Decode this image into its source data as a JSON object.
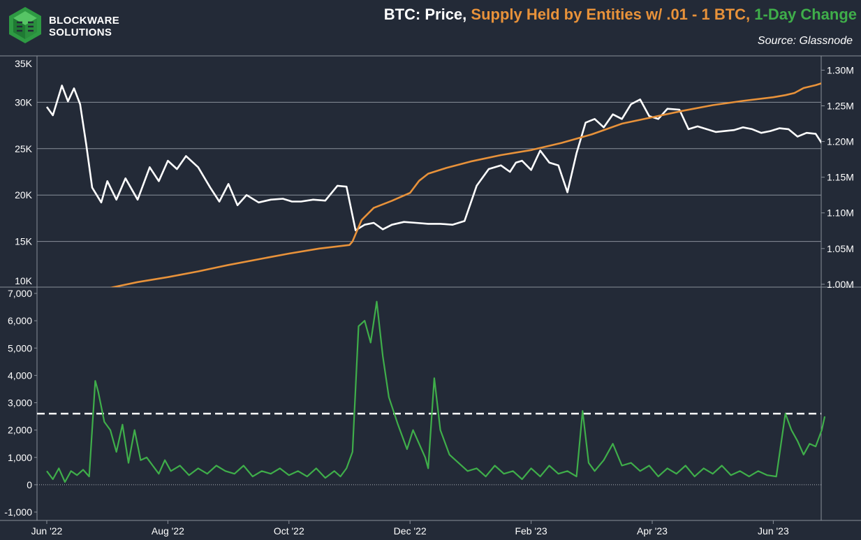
{
  "header": {
    "logo_line1": "BLOCKWARE",
    "logo_line2": "SOLUTIONS",
    "title_price": "BTC: Price,",
    "title_supply": "Supply Held by Entities w/ .01 - 1 BTC,",
    "title_change": "1-Day Change",
    "source": "Source: Glassnode"
  },
  "colors": {
    "background": "#232a37",
    "price": "#ffffff",
    "supply": "#e8923a",
    "change": "#3fae4a",
    "grid": "#8a909a"
  },
  "chart_data": [
    {
      "type": "line",
      "title": "BTC Price and Supply Held by Entities w/ .01 - 1 BTC",
      "x_ticks": [
        "Jun '22",
        "Aug '22",
        "Oct '22",
        "Dec '22",
        "Feb '23",
        "Apr '23",
        "Jun '23"
      ],
      "y_left": {
        "ticks": [
          "10K",
          "15K",
          "20K",
          "25K",
          "30K",
          "35K"
        ],
        "range": [
          10000,
          35000
        ]
      },
      "y_right": {
        "ticks": [
          "1.00M",
          "1.05M",
          "1.10M",
          "1.15M",
          "1.20M",
          "1.25M",
          "1.30M"
        ],
        "range": [
          995000,
          1320000
        ]
      },
      "series": [
        {
          "name": "BTC Price",
          "axis": "left",
          "x_months": [
            0,
            0.1,
            0.25,
            0.35,
            0.45,
            0.55,
            0.65,
            0.75,
            0.9,
            1.0,
            1.15,
            1.3,
            1.5,
            1.7,
            1.85,
            2.0,
            2.15,
            2.3,
            2.5,
            2.7,
            2.85,
            3.0,
            3.15,
            3.3,
            3.5,
            3.7,
            3.9,
            4.05,
            4.2,
            4.4,
            4.6,
            4.8,
            4.95,
            5.1,
            5.25,
            5.4,
            5.55,
            5.7,
            5.9,
            6.1,
            6.3,
            6.5,
            6.7,
            6.9,
            7.1,
            7.3,
            7.5,
            7.65,
            7.75,
            7.85,
            8.0,
            8.15,
            8.3,
            8.45,
            8.6,
            8.75,
            8.9,
            9.05,
            9.2,
            9.35,
            9.5,
            9.65,
            9.8,
            9.95,
            10.1,
            10.25,
            10.45,
            10.6,
            10.75,
            10.9,
            11.05,
            11.2,
            11.35,
            11.5,
            11.65,
            11.8,
            11.95,
            12.1,
            12.25,
            12.4,
            12.55,
            12.7,
            12.85
          ],
          "values": [
            29500,
            28600,
            31800,
            30100,
            31500,
            29800,
            25500,
            20800,
            19200,
            21500,
            19500,
            21800,
            19500,
            23000,
            21500,
            23700,
            22800,
            24200,
            23000,
            20800,
            19300,
            21200,
            18900,
            20000,
            19200,
            19500,
            19600,
            19300,
            19300,
            19500,
            19400,
            21000,
            20900,
            16200,
            16800,
            17000,
            16300,
            16800,
            17100,
            17000,
            16900,
            16900,
            16800,
            17200,
            21000,
            22800,
            23200,
            22500,
            23500,
            23700,
            22700,
            24800,
            23500,
            23200,
            20300,
            24500,
            27800,
            28200,
            27300,
            28700,
            28200,
            29800,
            30300,
            28500,
            28200,
            29300,
            29200,
            27100,
            27400,
            27100,
            26800,
            26900,
            27000,
            27300,
            27100,
            26700,
            26900,
            27200,
            27100,
            26300,
            26700,
            26600,
            25100
          ]
        },
        {
          "name": "Supply Held by Entities w/ .01 - 1 BTC",
          "axis": "right",
          "x_months": [
            1.05,
            1.5,
            2.0,
            2.5,
            3.0,
            3.5,
            4.0,
            4.5,
            5.0,
            5.05,
            5.2,
            5.4,
            5.7,
            6.0,
            6.15,
            6.3,
            6.6,
            7.0,
            7.5,
            8.0,
            8.5,
            9.0,
            9.5,
            10.0,
            10.5,
            11.0,
            11.5,
            12.0,
            12.2,
            12.35,
            12.5,
            12.7,
            12.85
          ],
          "values": [
            995000,
            1003000,
            1010000,
            1018000,
            1027000,
            1035000,
            1043000,
            1050000,
            1055000,
            1060000,
            1090000,
            1107000,
            1117000,
            1128000,
            1145000,
            1155000,
            1163000,
            1172000,
            1181000,
            1188000,
            1198000,
            1210000,
            1225000,
            1234000,
            1243000,
            1251000,
            1257000,
            1262000,
            1265000,
            1268000,
            1275000,
            1279000,
            1283000
          ]
        }
      ]
    },
    {
      "type": "line",
      "title": "1-Day Change",
      "x_ticks": [
        "Jun '22",
        "Aug '22",
        "Oct '22",
        "Dec '22",
        "Feb '23",
        "Apr '23",
        "Jun '23"
      ],
      "y_ticks": [
        "-1,000",
        "0",
        "1,000",
        "2,000",
        "3,000",
        "4,000",
        "5,000",
        "6,000",
        "7,000"
      ],
      "ylim": [
        -1000,
        7000
      ],
      "threshold": 2600,
      "series": [
        {
          "name": "1-Day Change",
          "x_months": [
            0,
            0.1,
            0.2,
            0.3,
            0.4,
            0.5,
            0.6,
            0.7,
            0.8,
            0.85,
            0.95,
            1.05,
            1.15,
            1.25,
            1.35,
            1.45,
            1.55,
            1.65,
            1.75,
            1.85,
            1.95,
            2.05,
            2.2,
            2.35,
            2.5,
            2.65,
            2.8,
            2.95,
            3.1,
            3.25,
            3.4,
            3.55,
            3.7,
            3.85,
            4.0,
            4.15,
            4.3,
            4.45,
            4.6,
            4.75,
            4.85,
            4.95,
            5.05,
            5.15,
            5.25,
            5.35,
            5.45,
            5.55,
            5.65,
            5.8,
            5.95,
            6.05,
            6.15,
            6.25,
            6.3,
            6.4,
            6.5,
            6.65,
            6.8,
            6.95,
            7.1,
            7.25,
            7.4,
            7.55,
            7.7,
            7.85,
            8.0,
            8.15,
            8.3,
            8.45,
            8.6,
            8.75,
            8.85,
            8.95,
            9.05,
            9.2,
            9.35,
            9.5,
            9.65,
            9.8,
            9.95,
            10.1,
            10.25,
            10.4,
            10.55,
            10.7,
            10.85,
            11.0,
            11.15,
            11.3,
            11.45,
            11.6,
            11.75,
            11.9,
            12.05,
            12.2,
            12.3,
            12.4,
            12.5,
            12.6,
            12.7,
            12.8,
            12.85
          ],
          "values": [
            500,
            200,
            600,
            100,
            500,
            350,
            550,
            300,
            3800,
            3400,
            2300,
            2000,
            1200,
            2200,
            800,
            2000,
            900,
            1000,
            700,
            400,
            900,
            500,
            700,
            350,
            600,
            400,
            700,
            500,
            400,
            700,
            300,
            500,
            400,
            600,
            350,
            500,
            300,
            600,
            250,
            500,
            300,
            600,
            1200,
            5800,
            6000,
            5200,
            6700,
            4700,
            3200,
            2200,
            1300,
            2000,
            1500,
            1000,
            600,
            3900,
            2000,
            1100,
            800,
            500,
            600,
            300,
            700,
            400,
            500,
            200,
            600,
            300,
            700,
            400,
            500,
            300,
            2700,
            800,
            500,
            900,
            1500,
            700,
            800,
            500,
            700,
            300,
            600,
            400,
            700,
            300,
            600,
            400,
            700,
            350,
            500,
            300,
            500,
            350,
            300,
            2600,
            2000,
            1600,
            1100,
            1500,
            1400,
            2000,
            2500
          ]
        }
      ]
    }
  ]
}
